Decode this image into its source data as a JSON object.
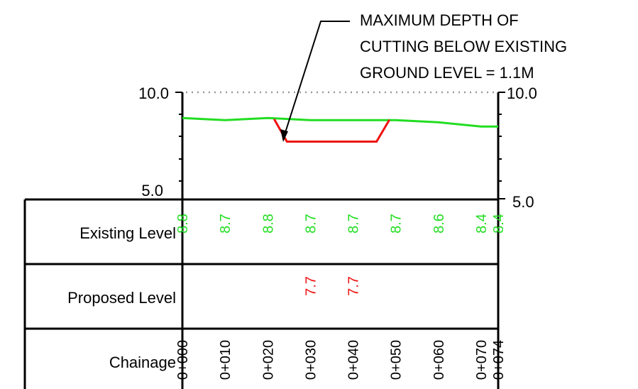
{
  "annotation": {
    "lines": [
      "MAXIMUM DEPTH OF",
      "CUTTING BELOW EXISTING",
      "GROUND LEVEL = 1.1M"
    ]
  },
  "axis": {
    "left_labels": [
      "10.0",
      "5.0"
    ],
    "right_labels": [
      "10.0",
      "5.0"
    ],
    "top_value": 10.0,
    "bottom_value": 5.0
  },
  "rows": {
    "existing_label": "Existing Level",
    "proposed_label": "Proposed Level",
    "chainage_label": "Chainage"
  },
  "colors": {
    "existing": "#22dd22",
    "proposed": "#ee1111",
    "grid": "#000000",
    "datum": "#999999"
  },
  "chart_data": {
    "type": "line",
    "x": [
      0,
      10,
      20,
      30,
      40,
      50,
      60,
      70,
      74
    ],
    "x_labels": [
      "0+000",
      "0+010",
      "0+020",
      "0+030",
      "0+040",
      "0+050",
      "0+060",
      "0+070",
      "0+074"
    ],
    "existing_level": {
      "values": [
        8.8,
        8.7,
        8.8,
        8.7,
        8.7,
        8.7,
        8.6,
        8.4,
        8.4
      ],
      "labels": [
        "8.8",
        "8.7",
        "8.8",
        "8.7",
        "8.7",
        "8.7",
        "8.6",
        "8.4",
        "8.4"
      ]
    },
    "proposed_level": {
      "chainages": [
        30,
        40
      ],
      "values": [
        7.7,
        7.7
      ],
      "labels": [
        "7.7",
        "7.7"
      ]
    },
    "cutting_profile": [
      {
        "x": 21.5,
        "y": 8.75
      },
      {
        "x": 24.5,
        "y": 7.7
      },
      {
        "x": 45.5,
        "y": 7.7
      },
      {
        "x": 48.5,
        "y": 8.72
      }
    ],
    "ylim": [
      5.0,
      10.0
    ]
  }
}
